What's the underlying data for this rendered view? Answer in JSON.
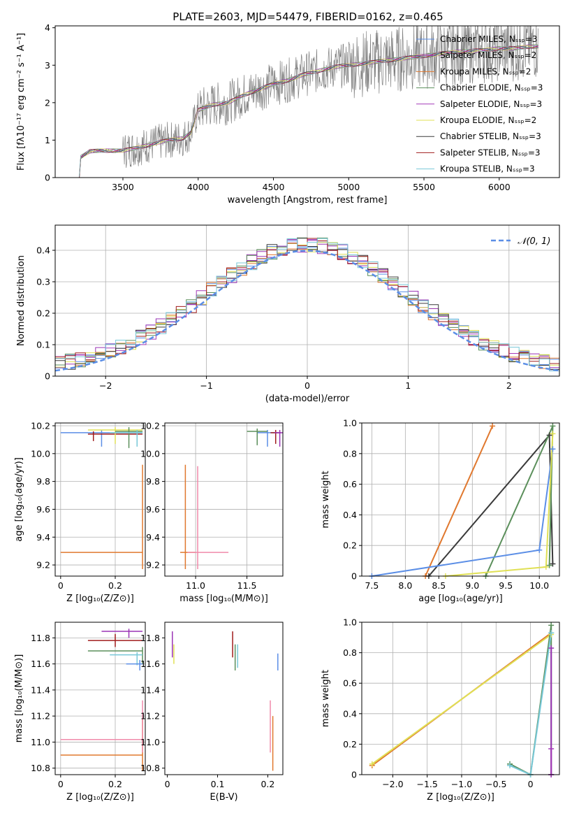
{
  "figure": {
    "title": "PLATE=2603, MJD=54479, FIBERID=0162, z=0.465"
  },
  "colors": {
    "series": [
      "#5b8ee6",
      "#9a33b5",
      "#e0782e",
      "#5b8f5b",
      "#a43ab8",
      "#e0e055",
      "#3a3a3a",
      "#a01b1b",
      "#78c8d8"
    ]
  },
  "chart_data": [
    {
      "id": "spectrum",
      "type": "line",
      "title": "PLATE=2603, MJD=54479, FIBERID=0162, z=0.465",
      "xlabel": "wavelength [Angstrom, rest frame]",
      "ylabel": "Flux [fλ10⁻¹⁷ erg cm⁻² s⁻¹ A⁻¹]",
      "xlim": [
        3050,
        6400
      ],
      "ylim": [
        0,
        4.05
      ],
      "xticks": [
        3500,
        4000,
        4500,
        5000,
        5500,
        6000
      ],
      "yticks": [
        0,
        1,
        2,
        3,
        4
      ],
      "legend_position": "upper right",
      "series": [
        {
          "name": "Chabrier MILES, N_SSP=3",
          "color": "#5b8ee6"
        },
        {
          "name": "Salpeter MILES, N_SSP=2",
          "color": "#9a33b5"
        },
        {
          "name": "Kroupa MILES, N_SSP=2",
          "color": "#e0782e"
        },
        {
          "name": "Chabrier ELODIE, N_SSP=3",
          "color": "#5b8f5b"
        },
        {
          "name": "Salpeter ELODIE, N_SSP=3",
          "color": "#a43ab8"
        },
        {
          "name": "Kroupa ELODIE, N_SSP=2",
          "color": "#e0e055"
        },
        {
          "name": "Chabrier STELIB, N_SSP=3",
          "color": "#3a3a3a"
        },
        {
          "name": "Salpeter STELIB, N_SSP=3",
          "color": "#a01b1b"
        },
        {
          "name": "Kroupa STELIB, N_SSP=3",
          "color": "#78c8d8"
        }
      ],
      "model_points": [
        [
          3210,
          0
        ],
        [
          3220,
          0.55
        ],
        [
          3280,
          0.7
        ],
        [
          3350,
          0.72
        ],
        [
          3400,
          0.72
        ],
        [
          3500,
          0.72
        ],
        [
          3600,
          0.8
        ],
        [
          3700,
          0.9
        ],
        [
          3800,
          1.0
        ],
        [
          3900,
          1.05
        ],
        [
          3950,
          1.2
        ],
        [
          4000,
          1.8
        ],
        [
          4100,
          1.95
        ],
        [
          4200,
          2.0
        ],
        [
          4300,
          2.2
        ],
        [
          4400,
          2.35
        ],
        [
          4500,
          2.5
        ],
        [
          4600,
          2.6
        ],
        [
          4700,
          2.75
        ],
        [
          4800,
          2.85
        ],
        [
          4900,
          2.95
        ],
        [
          5000,
          3.0
        ],
        [
          5100,
          3.05
        ],
        [
          5200,
          3.1
        ],
        [
          5300,
          3.15
        ],
        [
          5400,
          3.2
        ],
        [
          5500,
          3.25
        ],
        [
          5600,
          3.3
        ],
        [
          5700,
          3.35
        ],
        [
          5800,
          3.38
        ],
        [
          5900,
          3.4
        ],
        [
          6000,
          3.45
        ],
        [
          6100,
          3.45
        ],
        [
          6200,
          3.5
        ],
        [
          6260,
          3.5
        ]
      ]
    },
    {
      "id": "residuals",
      "type": "line",
      "xlabel": "(data-model)/error",
      "ylabel": "Normed distribution",
      "xlim": [
        -2.5,
        2.5
      ],
      "ylim": [
        0,
        0.48
      ],
      "xticks": [
        -2,
        -1,
        0,
        1,
        2
      ],
      "yticks": [
        0,
        0.1,
        0.2,
        0.3,
        0.4
      ],
      "grid": true,
      "legend_position": "upper right",
      "legend": [
        "𝒩(0, 1)"
      ],
      "gaussian": {
        "mean": 0,
        "sigma": 1
      }
    },
    {
      "id": "age-vs-Z",
      "type": "scatter",
      "xlabel": "Z [log₁₀(Z/Z⊙)]",
      "ylabel": "age  [log₁₀(age/yr)]",
      "xlim": [
        -0.02,
        0.31
      ],
      "ylim": [
        9.12,
        10.22
      ],
      "xticks": [
        0.0,
        0.2
      ],
      "yticks": [
        9.2,
        9.4,
        9.6,
        9.8,
        10.0,
        10.2
      ],
      "grid": true,
      "points": [
        {
          "x": 0.3,
          "y": 9.29,
          "xerr": [
            0.3,
            0
          ],
          "yerr": [
            0.12,
            0.63
          ],
          "color": "#e0782e"
        },
        {
          "x": 0.15,
          "y": 10.15,
          "xerr": [
            0.15,
            0.15
          ],
          "yerr": [
            0.1,
            0.02
          ],
          "color": "#5b8ee6"
        },
        {
          "x": 0.12,
          "y": 10.14,
          "xerr": [
            0.02,
            0.18
          ],
          "yerr": [
            0.05,
            0.02
          ],
          "color": "#a01b1b"
        },
        {
          "x": 0.2,
          "y": 10.17,
          "xerr": [
            0.1,
            0.1
          ],
          "yerr": [
            0.1,
            0.02
          ],
          "color": "#e0e055"
        },
        {
          "x": 0.25,
          "y": 10.16,
          "xerr": [
            0.05,
            0.05
          ],
          "yerr": [
            0.12,
            0.03
          ],
          "color": "#5b8f5b"
        },
        {
          "x": 0.28,
          "y": 10.15,
          "xerr": [
            0.1,
            0.02
          ],
          "yerr": [
            0.1,
            0.02
          ],
          "color": "#78c8d8"
        }
      ]
    },
    {
      "id": "age-vs-mass",
      "type": "scatter",
      "xlabel": "mass [log₁₀(M/M⊙)]",
      "ylabel": "",
      "xlim": [
        10.7,
        11.85
      ],
      "ylim": [
        9.12,
        10.22
      ],
      "xticks": [
        11.0,
        11.5
      ],
      "yticks": [
        9.2,
        9.4,
        9.6,
        9.8,
        10.0,
        10.2
      ],
      "grid": true,
      "points": [
        {
          "x": 10.9,
          "y": 9.29,
          "xerr": [
            0.05,
            0.1
          ],
          "yerr": [
            0.12,
            0.63
          ],
          "color": "#e0782e"
        },
        {
          "x": 11.02,
          "y": 9.29,
          "xerr": [
            0.1,
            0.3
          ],
          "yerr": [
            0.12,
            0.62
          ],
          "color": "#f08aaa"
        },
        {
          "x": 11.7,
          "y": 10.15,
          "xerr": [
            0.1,
            0.1
          ],
          "yerr": [
            0.1,
            0.02
          ],
          "color": "#5b8ee6"
        },
        {
          "x": 11.78,
          "y": 10.15,
          "xerr": [
            0.05,
            0.05
          ],
          "yerr": [
            0.08,
            0.02
          ],
          "color": "#a01b1b"
        },
        {
          "x": 11.6,
          "y": 10.16,
          "xerr": [
            0.1,
            0.1
          ],
          "yerr": [
            0.1,
            0.02
          ],
          "color": "#5b8f5b"
        },
        {
          "x": 11.82,
          "y": 10.15,
          "xerr": [
            0.05,
            0.03
          ],
          "yerr": [
            0.1,
            0.02
          ],
          "color": "#9a33b5"
        }
      ]
    },
    {
      "id": "massweight-vs-age",
      "type": "line",
      "xlabel": "age  [log₁₀(age/yr)]",
      "ylabel": "mass weight",
      "xlim": [
        7.35,
        10.3
      ],
      "ylim": [
        0,
        1.0
      ],
      "xticks": [
        7.5,
        8.0,
        8.5,
        9.0,
        9.5,
        10.0
      ],
      "yticks": [
        0.0,
        0.2,
        0.4,
        0.6,
        0.8,
        1.0
      ],
      "grid": true,
      "series": [
        {
          "color": "#e0782e",
          "x": [
            8.3,
            9.3
          ],
          "y": [
            0.0,
            0.98
          ]
        },
        {
          "color": "#3a3a3a",
          "x": [
            8.35,
            10.15,
            10.2
          ],
          "y": [
            0.0,
            0.92,
            0.08
          ]
        },
        {
          "color": "#5b8f5b",
          "x": [
            9.2,
            10.2,
            10.15
          ],
          "y": [
            0.0,
            0.98,
            0.07
          ]
        },
        {
          "color": "#5b8ee6",
          "x": [
            7.5,
            10.0,
            10.2
          ],
          "y": [
            0.0,
            0.17,
            0.83
          ]
        },
        {
          "color": "#e0e055",
          "x": [
            8.6,
            10.1,
            10.2
          ],
          "y": [
            0.0,
            0.06,
            0.93
          ]
        }
      ]
    },
    {
      "id": "mass-vs-Z",
      "type": "scatter",
      "xlabel": "Z [log₁₀(Z/Z⊙)]",
      "ylabel": "mass [log₁₀(M/M⊙)]",
      "xlim": [
        -0.02,
        0.31
      ],
      "ylim": [
        10.75,
        11.92
      ],
      "xticks": [
        0.0,
        0.2
      ],
      "yticks": [
        10.8,
        11.0,
        11.2,
        11.4,
        11.6,
        11.8
      ],
      "grid": true,
      "points": [
        {
          "x": 0.3,
          "y": 10.9,
          "xerr": [
            0.3,
            0
          ],
          "yerr": [
            0.12,
            0.28
          ],
          "color": "#e0782e"
        },
        {
          "x": 0.3,
          "y": 11.02,
          "xerr": [
            0.3,
            0
          ],
          "yerr": [
            0.1,
            0.3
          ],
          "color": "#f08aaa"
        },
        {
          "x": 0.25,
          "y": 11.85,
          "xerr": [
            0.1,
            0.05
          ],
          "yerr": [
            0.05,
            0.02
          ],
          "color": "#9a33b5"
        },
        {
          "x": 0.2,
          "y": 11.78,
          "xerr": [
            0.1,
            0.1
          ],
          "yerr": [
            0.05,
            0.05
          ],
          "color": "#a01b1b"
        },
        {
          "x": 0.3,
          "y": 11.7,
          "xerr": [
            0.2,
            0
          ],
          "yerr": [
            0.1,
            0.03
          ],
          "color": "#5b8f5b"
        },
        {
          "x": 0.28,
          "y": 11.67,
          "xerr": [
            0.1,
            0.02
          ],
          "yerr": [
            0.08,
            0.02
          ],
          "color": "#78c8d8"
        },
        {
          "x": 0.29,
          "y": 11.6,
          "xerr": [
            0.05,
            0.01
          ],
          "yerr": [
            0.05,
            0.03
          ],
          "color": "#5b8ee6"
        }
      ]
    },
    {
      "id": "mass-vs-EBV",
      "type": "scatter",
      "xlabel": "E(B-V)",
      "ylabel": "",
      "xlim": [
        -0.005,
        0.23
      ],
      "ylim": [
        10.75,
        11.92
      ],
      "xticks": [
        0.0,
        0.1,
        0.2
      ],
      "yticks": [
        10.8,
        11.0,
        11.2,
        11.4,
        11.6,
        11.8
      ],
      "grid": false,
      "points": [
        {
          "x": 0.21,
          "y": 10.9,
          "yerr": [
            0.12,
            0.3
          ],
          "color": "#e0782e"
        },
        {
          "x": 0.205,
          "y": 11.02,
          "yerr": [
            0.1,
            0.3
          ],
          "color": "#f08aaa"
        },
        {
          "x": 0.01,
          "y": 11.75,
          "yerr": [
            0.1,
            0.1
          ],
          "color": "#9a33b5"
        },
        {
          "x": 0.013,
          "y": 11.7,
          "yerr": [
            0.1,
            0.05
          ],
          "color": "#e0e055"
        },
        {
          "x": 0.13,
          "y": 11.75,
          "yerr": [
            0.1,
            0.1
          ],
          "color": "#a01b1b"
        },
        {
          "x": 0.135,
          "y": 11.65,
          "yerr": [
            0.1,
            0.1
          ],
          "color": "#5b8f5b"
        },
        {
          "x": 0.14,
          "y": 11.65,
          "yerr": [
            0.08,
            0.1
          ],
          "color": "#78c8d8"
        },
        {
          "x": 0.22,
          "y": 11.62,
          "yerr": [
            0.07,
            0.06
          ],
          "color": "#5b8ee6"
        }
      ]
    },
    {
      "id": "massweight-vs-Z",
      "type": "line",
      "xlabel": "Z [log₁₀(Z/Z⊙)]",
      "ylabel": "mass weight",
      "xlim": [
        -2.45,
        0.42
      ],
      "ylim": [
        0,
        1.0
      ],
      "xticks": [
        -2.0,
        -1.5,
        -1.0,
        -0.5,
        0.0
      ],
      "yticks": [
        0.0,
        0.2,
        0.4,
        0.6,
        0.8,
        1.0
      ],
      "grid": true,
      "series": [
        {
          "color": "#e0782e",
          "x": [
            -2.3,
            0.3
          ],
          "y": [
            0.06,
            0.93
          ]
        },
        {
          "color": "#e0e055",
          "x": [
            -2.3,
            0.3
          ],
          "y": [
            0.07,
            0.92
          ]
        },
        {
          "color": "#5b8f5b",
          "x": [
            -0.3,
            0.0,
            0.3,
            0.3
          ],
          "y": [
            0.07,
            0.0,
            0.98,
            0.0
          ]
        },
        {
          "color": "#78c8d8",
          "x": [
            -0.3,
            0.0,
            0.3
          ],
          "y": [
            0.06,
            0.0,
            0.93
          ]
        },
        {
          "color": "#9a33b5",
          "x": [
            0.3,
            0.3
          ],
          "y": [
            0.0,
            0.83
          ]
        },
        {
          "color": "#a43ab8",
          "x": [
            0.3,
            0.3
          ],
          "y": [
            0.17,
            0.0
          ]
        }
      ]
    }
  ]
}
